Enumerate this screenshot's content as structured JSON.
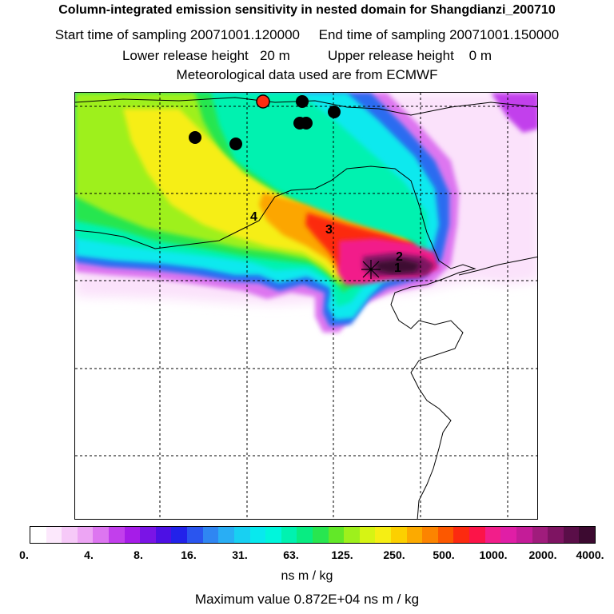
{
  "header": {
    "title": "Column-integrated emission sensitivity in nested domain for Shangdianzi_200710",
    "sampling": "Start time of sampling 20071001.120000     End time of sampling 20071001.150000",
    "release": "Lower release height   20 m          Upper release height    0 m",
    "met": "Meteorological data used are from ECMWF"
  },
  "map": {
    "labels": [
      "4",
      "3",
      "2",
      "1"
    ],
    "marker_colors": {
      "receptor": "#ff2d10",
      "site": "#000000"
    }
  },
  "colorbar": {
    "ticks": [
      "0.",
      "4.",
      "8.",
      "16.",
      "31.",
      "63.",
      "125.",
      "250.",
      "500.",
      "1000.",
      "2000.",
      "4000."
    ],
    "colors": [
      "#ffffff",
      "#fce8fc",
      "#f6c9f8",
      "#eda5f4",
      "#dd76f0",
      "#c23fec",
      "#a61ce8",
      "#7a14e6",
      "#4d10e4",
      "#2222ea",
      "#2a55ef",
      "#2f86f2",
      "#29aef4",
      "#18d0f2",
      "#08e9ee",
      "#00f6dc",
      "#00f2b0",
      "#08ec82",
      "#28e650",
      "#62e828",
      "#9ef01c",
      "#d6f414",
      "#f6ee14",
      "#fcd000",
      "#fcaa00",
      "#fc8400",
      "#fc5800",
      "#fc2a10",
      "#fc1448",
      "#f21e8a",
      "#e01ea6",
      "#c41c98",
      "#a01c7c",
      "#7e1462",
      "#5a0e48",
      "#3c0a30"
    ],
    "units": "ns m / kg"
  },
  "footer": {
    "max_value": "Maximum value  0.872E+04 ns m / kg"
  }
}
